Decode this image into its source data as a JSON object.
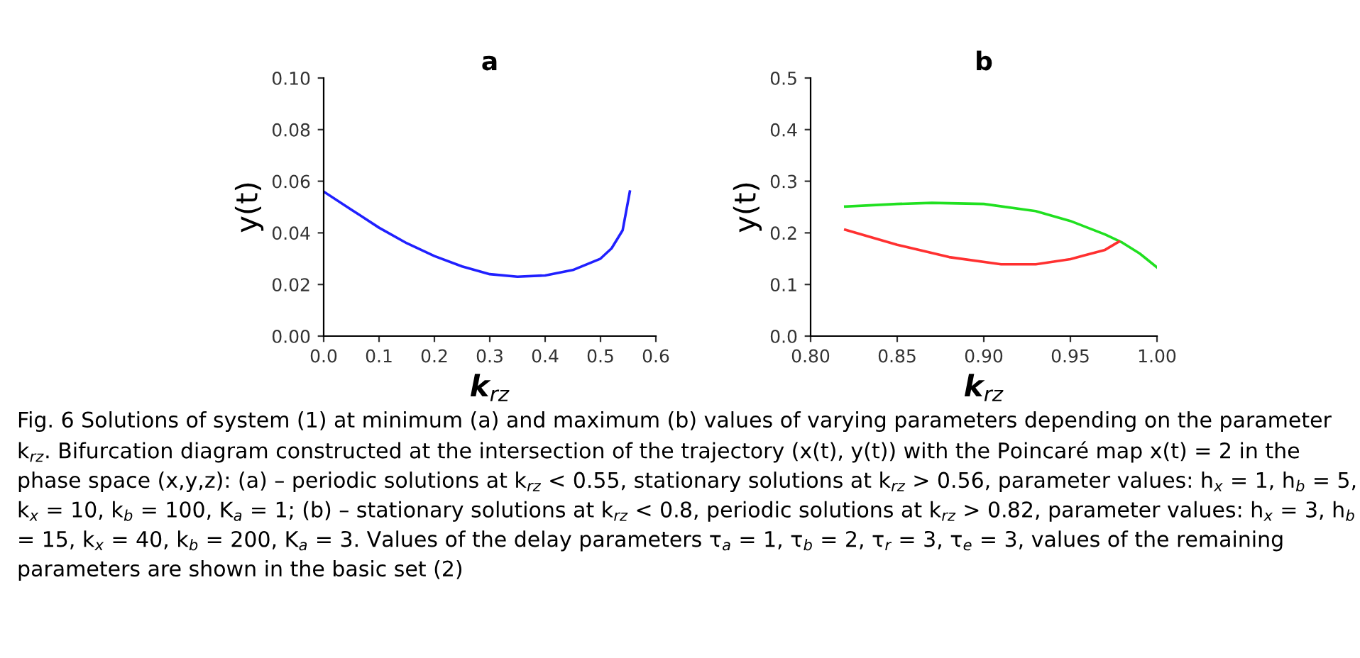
{
  "chart_data": [
    {
      "type": "line",
      "title": "a",
      "xlabel": "k$_{rz}$",
      "ylabel": "y(t)",
      "xlim": [
        0.0,
        0.6
      ],
      "xticks": [
        {
          "value": 0.0,
          "label": "0.0"
        },
        0.1,
        0.2,
        0.3,
        0.4,
        0.5,
        0.6
      ],
      "ylim": [
        0.0,
        0.1
      ],
      "yticks": [
        {
          "value": 0.0,
          "label": "0.00"
        },
        {
          "value": 0.02,
          "label": "0.02"
        },
        {
          "value": 0.04,
          "label": "0.04"
        },
        {
          "value": 0.06,
          "label": "0.06"
        },
        {
          "value": 0.08,
          "label": "0.08"
        },
        {
          "value": 0.1,
          "label": "0.10"
        }
      ],
      "grid": false,
      "legend": false,
      "marker": "none",
      "line_style": "solid",
      "series": [
        {
          "color": "#2020ff",
          "x": [
            0.0,
            0.05,
            0.1,
            0.15,
            0.2,
            0.25,
            0.3,
            0.35,
            0.4,
            0.45,
            0.5,
            0.52,
            0.54,
            0.553
          ],
          "values": [
            0.056,
            0.049,
            0.042,
            0.036,
            0.031,
            0.027,
            0.024,
            0.023,
            0.0235,
            0.0256,
            0.03,
            0.034,
            0.041,
            0.056
          ]
        }
      ],
      "annotations": [
        "Fig. 6 Solutions of system (1) at minimum (a) and maximum (b) values of varying parameters depending on the parameter k$_{rz}$. Bifurcation diagram constructed at the intersection of the trajectory (x(t), y(t)) with the Poincaré map x(t) = 2 in the phase space (x,y,z): (a) – periodic solutions at k$_{rz}$ < 0.55, stationary solutions at k$_{rz}$ > 0.56, parameter values: h$_{x}$ = 1, h$_{b}$ = 5, k$_{x}$ = 10, k$_{b}$ = 100, K$_{a}$ = 1; (b) – stationary solutions at k$_{rz}$ < 0.8, periodic solutions at k$_{rz}$ > 0.82, parameter values: h$_{x}$ = 3, h$_{b}$ = 15, k$_{x}$ = 40, k$_{b}$ = 200, K$_{a}$ = 3. Values of the delay parameters τ$_{a}$ = 1, τ$_{b}$ = 2, τ$_{r}$ = 3, τ$_{e}$ = 3, values of the remaining parameters are shown in the basic set (2)"
      ]
    },
    {
      "type": "line",
      "title": "b",
      "xlabel": "k$_{rz}$",
      "ylabel": "y(t)",
      "xlim": [
        0.8,
        1.0
      ],
      "xticks": [
        {
          "value": 0.8,
          "label": "0.80"
        },
        0.85,
        {
          "value": 0.9,
          "label": "0.90"
        },
        0.95,
        {
          "value": 1.0,
          "label": "1.00"
        }
      ],
      "ylim": [
        0.0,
        0.5
      ],
      "yticks": [
        {
          "value": 0.0,
          "label": "0.0"
        },
        0.1,
        0.2,
        0.3,
        0.4,
        0.5
      ],
      "grid": false,
      "legend": false,
      "marker": "none",
      "line_style": "solid",
      "series": [
        {
          "color": "#20e020",
          "x": [
            0.82,
            0.85,
            0.87,
            0.9,
            0.93,
            0.95,
            0.97,
            0.98,
            0.99,
            1.0
          ],
          "values": [
            0.251,
            0.256,
            0.258,
            0.256,
            0.242,
            0.223,
            0.197,
            0.181,
            0.16,
            0.133
          ]
        },
        {
          "color": "#ff3030",
          "x": [
            0.82,
            0.85,
            0.88,
            0.91,
            0.93,
            0.95,
            0.97,
            0.978
          ],
          "values": [
            0.206,
            0.177,
            0.153,
            0.139,
            0.139,
            0.149,
            0.167,
            0.183
          ]
        }
      ]
    }
  ]
}
